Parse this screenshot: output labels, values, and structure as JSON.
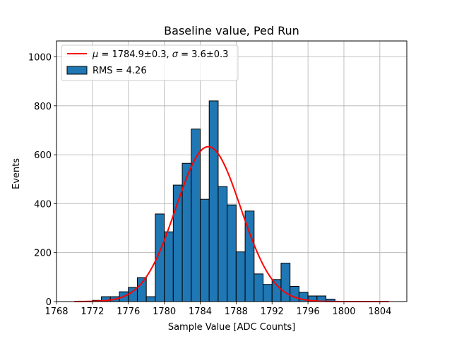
{
  "chart_data": {
    "type": "bar",
    "title": "Baseline value, Ped Run",
    "xlabel": "Sample Value [ADC Counts]",
    "ylabel": "Events",
    "xlim": [
      1768,
      1807
    ],
    "ylim": [
      0,
      1065
    ],
    "xticks": [
      1768,
      1772,
      1776,
      1780,
      1784,
      1788,
      1792,
      1796,
      1800,
      1804
    ],
    "yticks": [
      0,
      200,
      400,
      600,
      800,
      1000
    ],
    "grid": true,
    "legend_position": "top-left",
    "histogram": {
      "name": "RMS = 4.26",
      "color": "#1f77b4",
      "edge_color": "#000000",
      "bin_width": 1,
      "bins": [
        {
          "left": 1772,
          "count": 5
        },
        {
          "left": 1773,
          "count": 20
        },
        {
          "left": 1774,
          "count": 20
        },
        {
          "left": 1775,
          "count": 40
        },
        {
          "left": 1776,
          "count": 58
        },
        {
          "left": 1777,
          "count": 98
        },
        {
          "left": 1778,
          "count": 20
        },
        {
          "left": 1779,
          "count": 358
        },
        {
          "left": 1780,
          "count": 285
        },
        {
          "left": 1781,
          "count": 476
        },
        {
          "left": 1782,
          "count": 565
        },
        {
          "left": 1783,
          "count": 705
        },
        {
          "left": 1784,
          "count": 418
        },
        {
          "left": 1785,
          "count": 820
        },
        {
          "left": 1786,
          "count": 470
        },
        {
          "left": 1787,
          "count": 395
        },
        {
          "left": 1788,
          "count": 203
        },
        {
          "left": 1789,
          "count": 370
        },
        {
          "left": 1790,
          "count": 113
        },
        {
          "left": 1791,
          "count": 70
        },
        {
          "left": 1792,
          "count": 90
        },
        {
          "left": 1793,
          "count": 157
        },
        {
          "left": 1794,
          "count": 62
        },
        {
          "left": 1795,
          "count": 38
        },
        {
          "left": 1796,
          "count": 23
        },
        {
          "left": 1797,
          "count": 23
        },
        {
          "left": 1798,
          "count": 10
        }
      ]
    },
    "fit": {
      "name": "$\\mu = 1784.9 \\pm 0.3$, $\\sigma = 3.6 \\pm 0.3$",
      "name_symbol_mu": "μ",
      "name_mid": " = 1784.9±0.3, ",
      "name_symbol_sigma": "σ",
      "name_end": " = 3.6±0.3",
      "type": "gaussian",
      "color": "#ff0000",
      "mu": 1784.9,
      "sigma": 3.6,
      "amplitude": 633,
      "x_range": [
        1770,
        1805
      ]
    }
  }
}
